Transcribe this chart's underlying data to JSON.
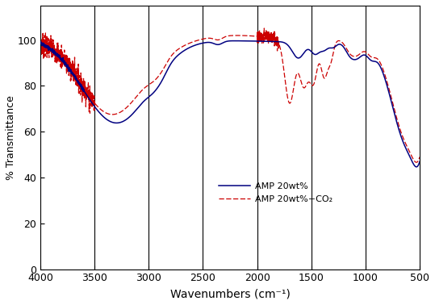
{
  "xlabel": "Wavenumbers (cm⁻¹)",
  "ylabel": "% Transmittance",
  "xlim": [
    4000,
    500
  ],
  "ylim": [
    0,
    115
  ],
  "yticks": [
    0,
    20,
    40,
    60,
    80,
    100
  ],
  "xticks": [
    4000,
    3500,
    3000,
    2500,
    2000,
    1500,
    1000,
    500
  ],
  "vlines": [
    3500,
    3000,
    2500,
    2000,
    1500,
    1000
  ],
  "line1_color": "#000080",
  "line2_color": "#CC0000",
  "line1_label": "AMP 20wt%",
  "line2_label": "AMP 20wt%+CO₂",
  "background_color": "#ffffff"
}
